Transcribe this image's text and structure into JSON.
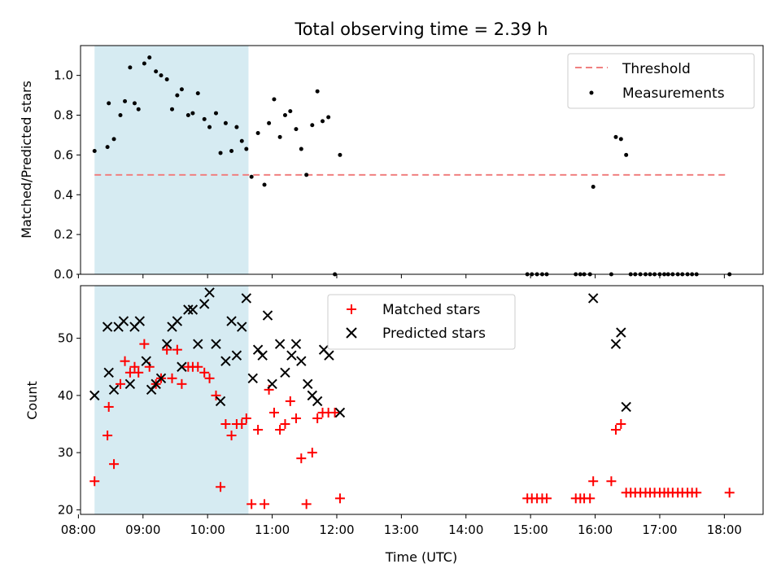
{
  "title": "Total observing time = 2.39 h",
  "colors": {
    "threshold": "#f08080",
    "measurements": "#000000",
    "matched": "#ff0000",
    "predicted": "#000000",
    "span_fill": "#add8e6"
  },
  "chart_data": [
    {
      "type": "scatter",
      "ylabel": "Matched/Predicted stars",
      "xlim": [
        8.033,
        18.6
      ],
      "ylim": [
        0,
        1.15
      ],
      "yticks": [
        0.0,
        0.2,
        0.4,
        0.6,
        0.8,
        1.0
      ],
      "ytick_labels": [
        "0.0",
        "0.2",
        "0.4",
        "0.6",
        "0.8",
        "1.0"
      ],
      "shaded_span": [
        8.25,
        10.633
      ],
      "threshold": {
        "y": 0.5,
        "x_start": 8.25,
        "x_end": 18.05
      },
      "legend": {
        "position": "top-right",
        "entries": [
          "Threshold",
          "Measurements"
        ]
      },
      "series": [
        {
          "name": "Measurements",
          "marker": "dot",
          "x": [
            8.25,
            8.45,
            8.47,
            8.55,
            8.65,
            8.72,
            8.8,
            8.87,
            8.93,
            9.02,
            9.1,
            9.2,
            9.28,
            9.37,
            9.45,
            9.53,
            9.6,
            9.7,
            9.77,
            9.85,
            9.95,
            10.03,
            10.13,
            10.2,
            10.28,
            10.37,
            10.45,
            10.53,
            10.6,
            10.68,
            10.78,
            10.88,
            10.95,
            11.03,
            11.12,
            11.2,
            11.28,
            11.37,
            11.45,
            11.53,
            11.62,
            11.7,
            11.78,
            11.87,
            11.97,
            12.05,
            14.95,
            15.02,
            15.1,
            15.18,
            15.25,
            15.7,
            15.77,
            15.83,
            15.92,
            15.97,
            16.25,
            16.32,
            16.4,
            16.48,
            16.55,
            16.62,
            16.7,
            16.78,
            16.85,
            16.92,
            17.0,
            17.07,
            17.13,
            17.2,
            17.28,
            17.35,
            17.43,
            17.5,
            17.57,
            18.08
          ],
          "y": [
            0.62,
            0.64,
            0.86,
            0.68,
            0.8,
            0.87,
            1.04,
            0.86,
            0.83,
            1.06,
            1.09,
            1.02,
            1.0,
            0.98,
            0.83,
            0.9,
            0.93,
            0.8,
            0.81,
            0.91,
            0.78,
            0.74,
            0.81,
            0.61,
            0.76,
            0.62,
            0.74,
            0.67,
            0.63,
            0.49,
            0.71,
            0.45,
            0.76,
            0.88,
            0.69,
            0.8,
            0.82,
            0.73,
            0.63,
            0.5,
            0.75,
            0.92,
            0.77,
            0.79,
            0.0,
            0.6,
            0.0,
            0.0,
            0.0,
            0.0,
            0.0,
            0.0,
            0.0,
            0.0,
            0.0,
            0.44,
            0.0,
            0.69,
            0.68,
            0.6,
            0.0,
            0.0,
            0.0,
            0.0,
            0.0,
            0.0,
            0.0,
            0.0,
            0.0,
            0.0,
            0.0,
            0.0,
            0.0,
            0.0,
            0.0,
            0.0
          ]
        }
      ]
    },
    {
      "type": "scatter",
      "xlabel": "Time (UTC)",
      "ylabel": "Count",
      "xlim": [
        8.033,
        18.6
      ],
      "ylim": [
        19.2,
        59.2
      ],
      "xticks": [
        8,
        9,
        10,
        11,
        12,
        13,
        14,
        15,
        16,
        17,
        18
      ],
      "xtick_labels": [
        "08:00",
        "09:00",
        "10:00",
        "11:00",
        "12:00",
        "13:00",
        "14:00",
        "15:00",
        "16:00",
        "17:00",
        "18:00"
      ],
      "yticks": [
        20,
        30,
        40,
        50
      ],
      "ytick_labels": [
        "20",
        "30",
        "40",
        "50"
      ],
      "shaded_span": [
        8.25,
        10.633
      ],
      "legend": {
        "position": "top-center",
        "entries": [
          "Matched stars",
          "Predicted stars"
        ]
      },
      "series": [
        {
          "name": "Matched stars",
          "marker": "plus",
          "x": [
            8.25,
            8.45,
            8.47,
            8.55,
            8.65,
            8.72,
            8.8,
            8.87,
            8.93,
            9.02,
            9.1,
            9.2,
            9.28,
            9.37,
            9.45,
            9.53,
            9.6,
            9.7,
            9.77,
            9.85,
            9.95,
            10.03,
            10.13,
            10.2,
            10.28,
            10.37,
            10.45,
            10.53,
            10.6,
            10.68,
            10.78,
            10.88,
            10.95,
            11.03,
            11.12,
            11.2,
            11.28,
            11.37,
            11.45,
            11.53,
            11.62,
            11.7,
            11.78,
            11.87,
            11.97,
            12.05,
            14.95,
            15.02,
            15.1,
            15.18,
            15.25,
            15.7,
            15.77,
            15.83,
            15.92,
            15.97,
            16.25,
            16.32,
            16.4,
            16.48,
            16.55,
            16.62,
            16.7,
            16.78,
            16.85,
            16.92,
            17.0,
            17.07,
            17.13,
            17.2,
            17.28,
            17.35,
            17.43,
            17.5,
            17.57,
            18.08
          ],
          "y": [
            25,
            33,
            38,
            28,
            42,
            46,
            44,
            45,
            44,
            49,
            45,
            42,
            43,
            48,
            43,
            48,
            42,
            45,
            45,
            45,
            44,
            43,
            40,
            24,
            35,
            33,
            35,
            35,
            36,
            21,
            34,
            21,
            41,
            37,
            34,
            35,
            39,
            36,
            29,
            21,
            30,
            36,
            37,
            37,
            37,
            22,
            22,
            22,
            22,
            22,
            22,
            22,
            22,
            22,
            22,
            25,
            25,
            34,
            35,
            23,
            23,
            23,
            23,
            23,
            23,
            23,
            23,
            23,
            23,
            23,
            23,
            23,
            23,
            23,
            23,
            23
          ]
        },
        {
          "name": "Predicted stars",
          "marker": "x",
          "x": [
            8.25,
            8.45,
            8.47,
            8.55,
            8.62,
            8.7,
            8.8,
            8.87,
            8.95,
            9.05,
            9.13,
            9.2,
            9.28,
            9.37,
            9.45,
            9.53,
            9.6,
            9.7,
            9.77,
            9.85,
            9.95,
            10.03,
            10.13,
            10.2,
            10.28,
            10.37,
            10.45,
            10.53,
            10.6,
            10.7,
            10.78,
            10.85,
            10.93,
            11.0,
            11.12,
            11.2,
            11.3,
            11.37,
            11.45,
            11.55,
            11.62,
            11.7,
            11.8,
            11.88,
            12.05,
            15.97,
            16.32,
            16.4,
            16.48
          ],
          "y": [
            40,
            52,
            44,
            41,
            52,
            53,
            42,
            52,
            53,
            46,
            41,
            42,
            43,
            49,
            52,
            53,
            45,
            55,
            55,
            49,
            56,
            58,
            49,
            39,
            46,
            53,
            47,
            52,
            57,
            43,
            48,
            47,
            54,
            42,
            49,
            44,
            47,
            49,
            46,
            42,
            40,
            39,
            48,
            47,
            37,
            57,
            49,
            51,
            38
          ]
        }
      ]
    }
  ]
}
